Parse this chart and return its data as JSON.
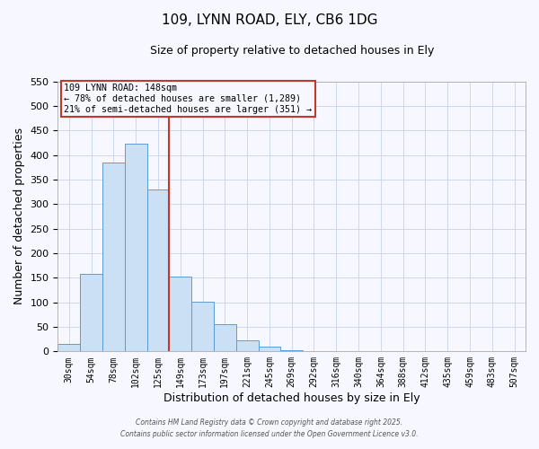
{
  "title": "109, LYNN ROAD, ELY, CB6 1DG",
  "subtitle": "Size of property relative to detached houses in Ely",
  "xlabel": "Distribution of detached houses by size in Ely",
  "ylabel": "Number of detached properties",
  "bin_labels": [
    "30sqm",
    "54sqm",
    "78sqm",
    "102sqm",
    "125sqm",
    "149sqm",
    "173sqm",
    "197sqm",
    "221sqm",
    "245sqm",
    "269sqm",
    "292sqm",
    "316sqm",
    "340sqm",
    "364sqm",
    "388sqm",
    "412sqm",
    "435sqm",
    "459sqm",
    "483sqm",
    "507sqm"
  ],
  "bar_heights": [
    15,
    157,
    385,
    423,
    330,
    153,
    102,
    55,
    22,
    10,
    3,
    1,
    1,
    0,
    0,
    1,
    0,
    0,
    0,
    0,
    0
  ],
  "bar_color": "#cce0f5",
  "bar_edge_color": "#5b9bd5",
  "vline_x": 4.5,
  "vline_color": "#c0392b",
  "ylim": [
    0,
    550
  ],
  "yticks": [
    0,
    50,
    100,
    150,
    200,
    250,
    300,
    350,
    400,
    450,
    500,
    550
  ],
  "annotation_line1": "109 LYNN ROAD: 148sqm",
  "annotation_line2": "← 78% of detached houses are smaller (1,289)",
  "annotation_line3": "21% of semi-detached houses are larger (351) →",
  "annotation_box_color": "#c0392b",
  "footer_line1": "Contains HM Land Registry data © Crown copyright and database right 2025.",
  "footer_line2": "Contains public sector information licensed under the Open Government Licence v3.0.",
  "background_color": "#f7f7ff",
  "grid_color": "#c8d4e8"
}
